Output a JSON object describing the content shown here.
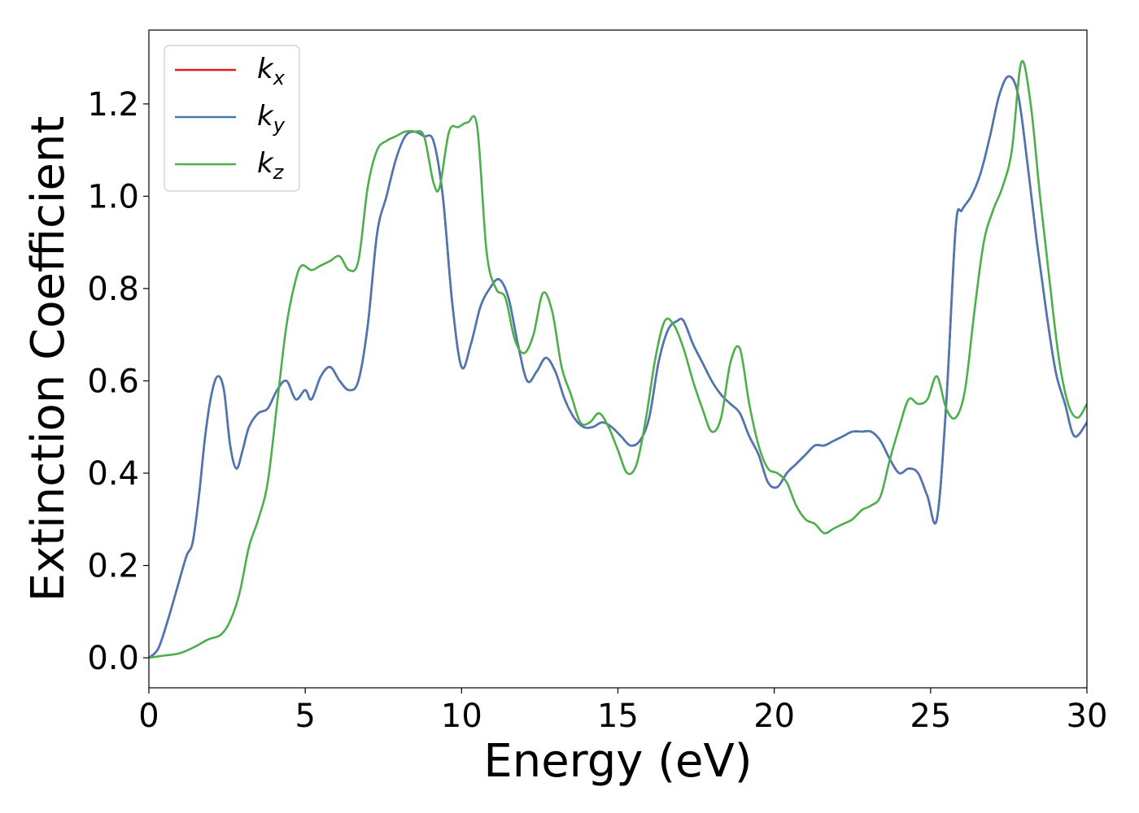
{
  "chart_data": {
    "type": "line",
    "xlabel": "Energy (eV)",
    "ylabel": "Extinction Coefficient",
    "xlim": [
      0,
      30
    ],
    "ylim": [
      -0.065,
      1.36
    ],
    "xticks": [
      "0",
      "5",
      "10",
      "15",
      "20",
      "25",
      "30"
    ],
    "yticks": [
      "0.0",
      "0.2",
      "0.4",
      "0.6",
      "0.8",
      "1.0",
      "1.2"
    ],
    "grid": false,
    "legend_position": "top-left",
    "series": [
      {
        "name": "k_x",
        "label_main": "k",
        "label_sub": "x",
        "color": "#e41a1c",
        "x": [
          0,
          0.3,
          0.6,
          0.9,
          1.2,
          1.4,
          1.6,
          1.8,
          2.0,
          2.2,
          2.4,
          2.6,
          2.8,
          3.0,
          3.2,
          3.5,
          3.8,
          4.1,
          4.4,
          4.7,
          5.0,
          5.2,
          5.5,
          5.8,
          6.1,
          6.4,
          6.7,
          7.0,
          7.3,
          7.6,
          7.9,
          8.2,
          8.5,
          8.8,
          9.1,
          9.4,
          9.7,
          10.0,
          10.3,
          10.6,
          10.9,
          11.2,
          11.5,
          11.8,
          12.1,
          12.4,
          12.7,
          13.0,
          13.3,
          13.6,
          13.9,
          14.2,
          14.5,
          14.8,
          15.1,
          15.4,
          15.7,
          16.0,
          16.3,
          16.6,
          16.9,
          17.1,
          17.4,
          17.7,
          18.0,
          18.3,
          18.6,
          18.9,
          19.2,
          19.5,
          19.8,
          20.1,
          20.4,
          20.7,
          21.0,
          21.3,
          21.6,
          21.9,
          22.2,
          22.5,
          22.8,
          23.1,
          23.4,
          23.7,
          24.0,
          24.3,
          24.6,
          24.9,
          25.2,
          25.5,
          25.8,
          26.0,
          26.3,
          26.6,
          26.9,
          27.2,
          27.5,
          27.8,
          28.1,
          28.4,
          28.7,
          29.0,
          29.3,
          29.6,
          30.0
        ],
        "y": [
          0,
          0.02,
          0.08,
          0.15,
          0.22,
          0.25,
          0.35,
          0.48,
          0.57,
          0.61,
          0.58,
          0.46,
          0.41,
          0.45,
          0.5,
          0.53,
          0.54,
          0.58,
          0.6,
          0.56,
          0.58,
          0.56,
          0.61,
          0.63,
          0.6,
          0.58,
          0.6,
          0.72,
          0.92,
          1.0,
          1.08,
          1.13,
          1.14,
          1.13,
          1.12,
          1.0,
          0.77,
          0.63,
          0.68,
          0.76,
          0.8,
          0.82,
          0.78,
          0.68,
          0.6,
          0.62,
          0.65,
          0.62,
          0.56,
          0.52,
          0.5,
          0.5,
          0.51,
          0.5,
          0.48,
          0.46,
          0.47,
          0.52,
          0.64,
          0.71,
          0.73,
          0.73,
          0.68,
          0.64,
          0.6,
          0.57,
          0.55,
          0.53,
          0.48,
          0.44,
          0.38,
          0.37,
          0.4,
          0.42,
          0.44,
          0.46,
          0.46,
          0.47,
          0.48,
          0.49,
          0.49,
          0.49,
          0.47,
          0.43,
          0.4,
          0.41,
          0.4,
          0.35,
          0.3,
          0.55,
          0.93,
          0.97,
          1.0,
          1.05,
          1.13,
          1.22,
          1.26,
          1.22,
          1.07,
          0.9,
          0.75,
          0.62,
          0.55,
          0.48,
          0.51
        ]
      },
      {
        "name": "k_y",
        "label_main": "k",
        "label_sub": "y",
        "color": "#4a78b5",
        "x": [
          0,
          0.3,
          0.6,
          0.9,
          1.2,
          1.4,
          1.6,
          1.8,
          2.0,
          2.2,
          2.4,
          2.6,
          2.8,
          3.0,
          3.2,
          3.5,
          3.8,
          4.1,
          4.4,
          4.7,
          5.0,
          5.2,
          5.5,
          5.8,
          6.1,
          6.4,
          6.7,
          7.0,
          7.3,
          7.6,
          7.9,
          8.2,
          8.5,
          8.8,
          9.1,
          9.4,
          9.7,
          10.0,
          10.3,
          10.6,
          10.9,
          11.2,
          11.5,
          11.8,
          12.1,
          12.4,
          12.7,
          13.0,
          13.3,
          13.6,
          13.9,
          14.2,
          14.5,
          14.8,
          15.1,
          15.4,
          15.7,
          16.0,
          16.3,
          16.6,
          16.9,
          17.1,
          17.4,
          17.7,
          18.0,
          18.3,
          18.6,
          18.9,
          19.2,
          19.5,
          19.8,
          20.1,
          20.4,
          20.7,
          21.0,
          21.3,
          21.6,
          21.9,
          22.2,
          22.5,
          22.8,
          23.1,
          23.4,
          23.7,
          24.0,
          24.3,
          24.6,
          24.9,
          25.2,
          25.5,
          25.8,
          26.0,
          26.3,
          26.6,
          26.9,
          27.2,
          27.5,
          27.8,
          28.1,
          28.4,
          28.7,
          29.0,
          29.3,
          29.6,
          30.0
        ],
        "y": [
          0,
          0.02,
          0.08,
          0.15,
          0.22,
          0.25,
          0.35,
          0.48,
          0.57,
          0.61,
          0.58,
          0.46,
          0.41,
          0.45,
          0.5,
          0.53,
          0.54,
          0.58,
          0.6,
          0.56,
          0.58,
          0.56,
          0.61,
          0.63,
          0.6,
          0.58,
          0.6,
          0.72,
          0.92,
          1.0,
          1.08,
          1.13,
          1.14,
          1.13,
          1.12,
          1.0,
          0.77,
          0.63,
          0.68,
          0.76,
          0.8,
          0.82,
          0.78,
          0.68,
          0.6,
          0.62,
          0.65,
          0.62,
          0.56,
          0.52,
          0.5,
          0.5,
          0.51,
          0.5,
          0.48,
          0.46,
          0.47,
          0.52,
          0.64,
          0.71,
          0.73,
          0.73,
          0.68,
          0.64,
          0.6,
          0.57,
          0.55,
          0.53,
          0.48,
          0.44,
          0.38,
          0.37,
          0.4,
          0.42,
          0.44,
          0.46,
          0.46,
          0.47,
          0.48,
          0.49,
          0.49,
          0.49,
          0.47,
          0.43,
          0.4,
          0.41,
          0.4,
          0.35,
          0.3,
          0.55,
          0.93,
          0.97,
          1.0,
          1.05,
          1.13,
          1.22,
          1.26,
          1.22,
          1.07,
          0.9,
          0.75,
          0.62,
          0.55,
          0.48,
          0.51
        ]
      },
      {
        "name": "k_z",
        "label_main": "k",
        "label_sub": "z",
        "color": "#4daf4a",
        "x": [
          0,
          0.5,
          1.0,
          1.5,
          1.9,
          2.3,
          2.6,
          2.9,
          3.2,
          3.5,
          3.8,
          4.1,
          4.4,
          4.7,
          4.9,
          5.2,
          5.5,
          5.8,
          6.1,
          6.4,
          6.7,
          7.0,
          7.3,
          7.6,
          7.9,
          8.2,
          8.5,
          8.8,
          9.1,
          9.3,
          9.6,
          9.9,
          10.2,
          10.5,
          10.8,
          11.1,
          11.4,
          11.7,
          12.0,
          12.3,
          12.6,
          12.9,
          13.2,
          13.5,
          13.8,
          14.1,
          14.4,
          14.7,
          15.0,
          15.3,
          15.6,
          15.9,
          16.2,
          16.5,
          16.8,
          17.1,
          17.4,
          17.7,
          18.0,
          18.3,
          18.6,
          18.9,
          19.2,
          19.5,
          19.8,
          20.1,
          20.4,
          20.7,
          21.0,
          21.3,
          21.6,
          21.9,
          22.2,
          22.5,
          22.8,
          23.1,
          23.4,
          23.7,
          24.0,
          24.3,
          24.6,
          24.9,
          25.2,
          25.5,
          25.8,
          26.1,
          26.4,
          26.7,
          27.0,
          27.3,
          27.6,
          27.9,
          28.2,
          28.5,
          28.8,
          29.1,
          29.4,
          29.7,
          30.0
        ],
        "y": [
          0,
          0.005,
          0.01,
          0.025,
          0.04,
          0.05,
          0.08,
          0.14,
          0.24,
          0.3,
          0.38,
          0.55,
          0.72,
          0.82,
          0.85,
          0.84,
          0.85,
          0.86,
          0.87,
          0.84,
          0.86,
          1.02,
          1.1,
          1.12,
          1.13,
          1.14,
          1.14,
          1.13,
          1.03,
          1.02,
          1.14,
          1.15,
          1.16,
          1.15,
          0.88,
          0.8,
          0.78,
          0.69,
          0.66,
          0.7,
          0.79,
          0.75,
          0.63,
          0.57,
          0.51,
          0.51,
          0.53,
          0.5,
          0.45,
          0.4,
          0.42,
          0.52,
          0.65,
          0.73,
          0.72,
          0.67,
          0.6,
          0.54,
          0.49,
          0.52,
          0.64,
          0.67,
          0.55,
          0.46,
          0.41,
          0.4,
          0.38,
          0.33,
          0.3,
          0.29,
          0.27,
          0.28,
          0.29,
          0.3,
          0.32,
          0.33,
          0.35,
          0.43,
          0.5,
          0.56,
          0.55,
          0.56,
          0.61,
          0.54,
          0.52,
          0.58,
          0.75,
          0.9,
          0.97,
          1.02,
          1.1,
          1.29,
          1.2,
          1.0,
          0.82,
          0.65,
          0.55,
          0.52,
          0.55
        ]
      }
    ]
  }
}
